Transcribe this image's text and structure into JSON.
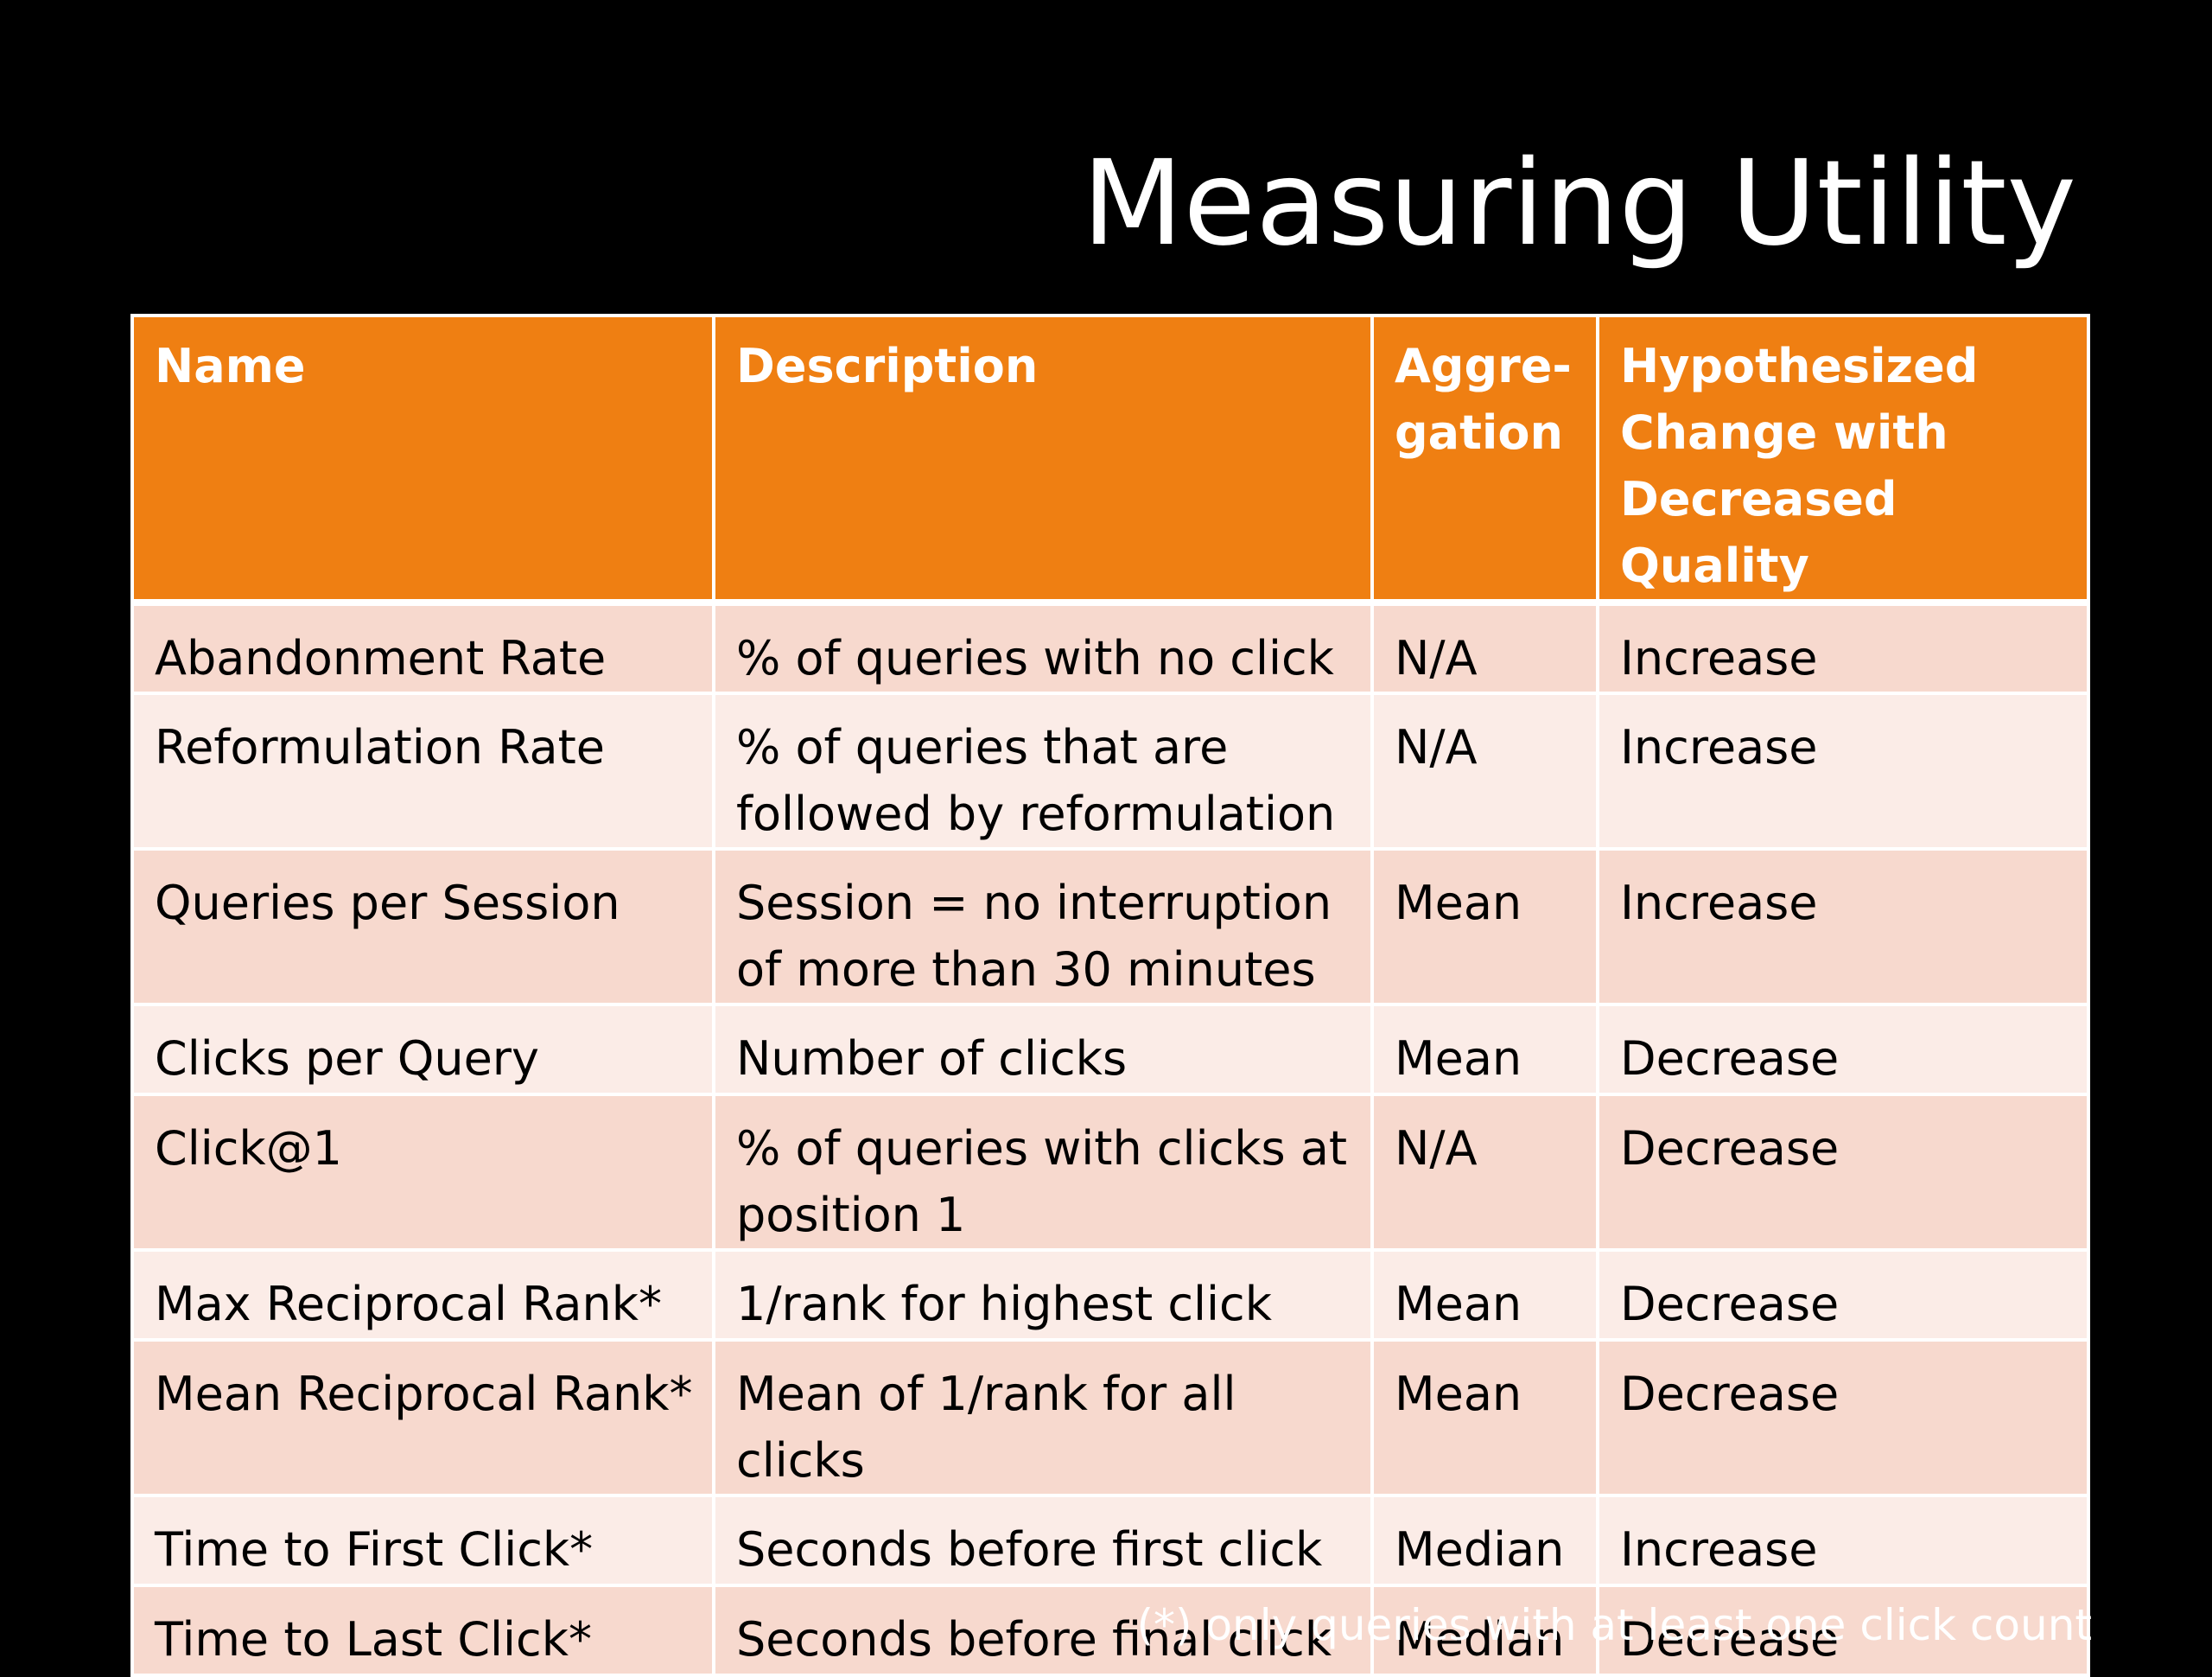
{
  "slide": {
    "title": "Measuring Utility",
    "footnote": "(*) only queries with at least one click count"
  },
  "table": {
    "headers": {
      "name": "Name",
      "description": "Description",
      "aggregation": "Aggre-gation",
      "hypothesized": "Hypothesized Change with Decreased Quality"
    },
    "rows": [
      {
        "name": "Abandonment Rate",
        "description": "% of queries with no click",
        "aggregation": "N/A",
        "change": "Increase"
      },
      {
        "name": "Reformulation Rate",
        "description": "% of queries that are followed by reformulation",
        "aggregation": "N/A",
        "change": "Increase"
      },
      {
        "name": "Queries per Session",
        "description": "Session = no interruption of more than 30 minutes",
        "aggregation": "Mean",
        "change": "Increase"
      },
      {
        "name": "Clicks per Query",
        "description": "Number of clicks",
        "aggregation": "Mean",
        "change": "Decrease"
      },
      {
        "name": "Click@1",
        "description": "% of queries with clicks at position 1",
        "aggregation": "N/A",
        "change": "Decrease"
      },
      {
        "name": "Max Reciprocal Rank*",
        "description": "1/rank for highest click",
        "aggregation": "Mean",
        "change": "Decrease"
      },
      {
        "name": "Mean Reciprocal Rank*",
        "description": "Mean of 1/rank for all clicks",
        "aggregation": "Mean",
        "change": "Decrease"
      },
      {
        "name": "Time to First Click*",
        "description": "Seconds before first click",
        "aggregation": "Median",
        "change": "Increase"
      },
      {
        "name": "Time to Last Click*",
        "description": "Seconds before final click",
        "aggregation": "Median",
        "change": "Decrease"
      }
    ]
  },
  "colors": {
    "background": "#000000",
    "header": "#ef7f12",
    "row_odd": "#f7d9ce",
    "row_even": "#fbece7"
  }
}
